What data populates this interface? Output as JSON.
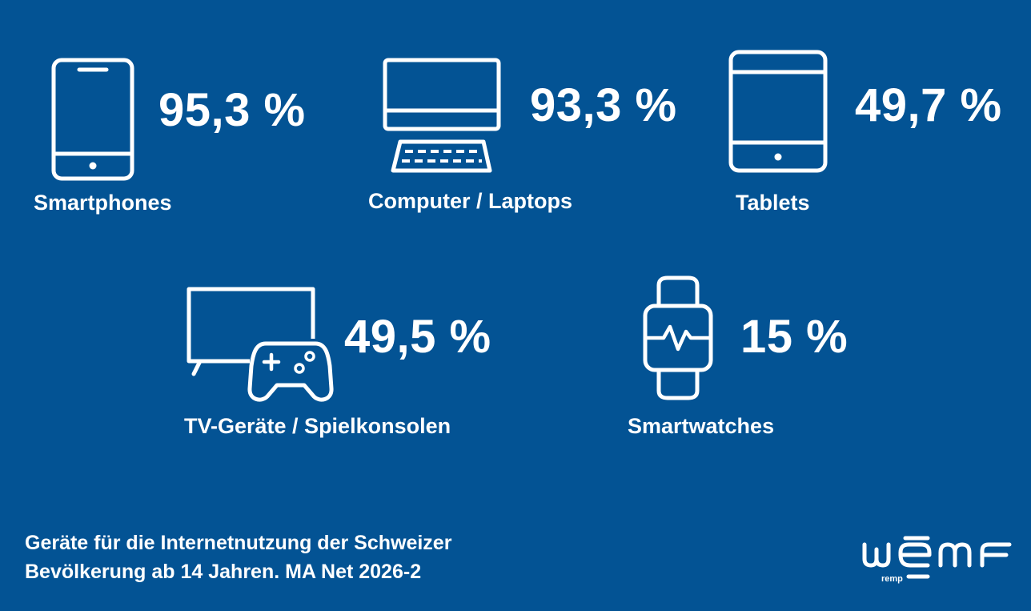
{
  "chart_data": {
    "type": "infographic",
    "unit": "%",
    "items": [
      {
        "key": "smartphones",
        "label": "Smartphones",
        "value": 95.3,
        "value_text": "95,3 %",
        "icon": "smartphone-icon"
      },
      {
        "key": "computer",
        "label": "Computer / Laptops",
        "value": 93.3,
        "value_text": "93,3 %",
        "icon": "computer-laptop-icon"
      },
      {
        "key": "tablets",
        "label": "Tablets",
        "value": 49.7,
        "value_text": "49,7 %",
        "icon": "tablet-icon"
      },
      {
        "key": "tv",
        "label": "TV-Geräte / Spielkonsolen",
        "value": 49.5,
        "value_text": "49,5 %",
        "icon": "tv-gamepad-icon"
      },
      {
        "key": "smartwatches",
        "label": "Smartwatches",
        "value": 15,
        "value_text": "15 %",
        "icon": "smartwatch-icon"
      }
    ]
  },
  "caption": {
    "line1": "Geräte für die Internetnutzung der Schweizer",
    "line2": "Bevölkerung ab 14 Jahren. MA Net 2026-2"
  },
  "logo": {
    "text": "wemf",
    "subtext": "remp"
  },
  "colors": {
    "background": "#035394",
    "foreground": "#ffffff"
  }
}
